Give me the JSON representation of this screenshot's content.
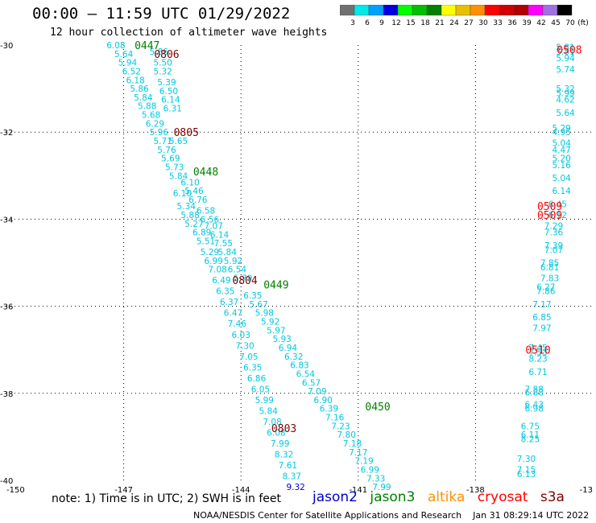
{
  "header": {
    "title": "00:00 – 11:59 UTC 01/29/2022",
    "subtitle": "12 hour collection of altimeter wave heights"
  },
  "colorbar": {
    "labels": [
      "3",
      "6",
      "9",
      "12",
      "15",
      "18",
      "21",
      "24",
      "27",
      "30",
      "33",
      "36",
      "39",
      "42",
      "45",
      "70"
    ],
    "unit": "(ft)",
    "colors": [
      "#707070",
      "#00e8e8",
      "#00a0ff",
      "#0000e0",
      "#00ff00",
      "#00c000",
      "#008000",
      "#ffff00",
      "#e8c000",
      "#ff9000",
      "#ff0000",
      "#d00000",
      "#b00000",
      "#ff00ff",
      "#a070e0",
      "#000000"
    ]
  },
  "note": "note: 1) Time is in UTC; 2) SWH is in feet",
  "satellites": [
    {
      "name": "jason2",
      "color": "#0000cc"
    },
    {
      "name": "jason3",
      "color": "#008000"
    },
    {
      "name": "altika",
      "color": "#ff9000"
    },
    {
      "name": "cryosat",
      "color": "#ff0000"
    },
    {
      "name": "s3a",
      "color": "#800000"
    }
  ],
  "credit": "NOAA/NESDIS Center for Satellite Applications and Research    Jan 31 08:29:14 UTC 2022",
  "chart_data": {
    "type": "scatter",
    "title": "00:00 – 11:59 UTC 01/29/2022",
    "subtitle": "12 hour collection of altimeter wave heights",
    "x_ticks": [
      "-150",
      "-147",
      "-144",
      "-141",
      "-138",
      "-13"
    ],
    "y_ticks": [
      "-30",
      "-32",
      "-34",
      "-36",
      "-38",
      "-40"
    ],
    "xlim": [
      -150,
      -135
    ],
    "ylim": [
      -40,
      -30
    ],
    "grid": "dotted",
    "time_labels": [
      {
        "text": "0447",
        "lon": -146.4,
        "lat": -30.0,
        "color": "#008000"
      },
      {
        "text": "0806",
        "lon": -145.9,
        "lat": -30.2,
        "color": "#800000"
      },
      {
        "text": "0805",
        "lon": -145.4,
        "lat": -32.0,
        "color": "#800000"
      },
      {
        "text": "0448",
        "lon": -144.9,
        "lat": -32.9,
        "color": "#008000"
      },
      {
        "text": "0804",
        "lon": -143.9,
        "lat": -35.4,
        "color": "#800000"
      },
      {
        "text": "0449",
        "lon": -143.1,
        "lat": -35.5,
        "color": "#008000"
      },
      {
        "text": "0450",
        "lon": -140.5,
        "lat": -38.3,
        "color": "#008000"
      },
      {
        "text": "0803",
        "lon": -142.9,
        "lat": -38.8,
        "color": "#800000"
      },
      {
        "text": "0508",
        "lon": -135.6,
        "lat": -30.1,
        "color": "#ff0000"
      },
      {
        "text": "0509",
        "lon": -136.1,
        "lat": -33.7,
        "color": "#ff0000"
      },
      {
        "text": "0509",
        "lon": -136.1,
        "lat": -33.9,
        "color": "#ff0000"
      },
      {
        "text": "0510",
        "lon": -136.4,
        "lat": -37.0,
        "color": "#ff0000"
      }
    ],
    "series": [
      {
        "name": "jason3",
        "color": "#00c8e0",
        "points": [
          {
            "lon": -147.2,
            "lat": -30.0,
            "v": "6.08"
          },
          {
            "lon": -146.1,
            "lat": -30.15,
            "v": "5.86"
          },
          {
            "lon": -146.0,
            "lat": -30.4,
            "v": "5.50"
          },
          {
            "lon": -146.0,
            "lat": -30.6,
            "v": "5.32"
          },
          {
            "lon": -145.9,
            "lat": -30.85,
            "v": "5.39"
          },
          {
            "lon": -145.85,
            "lat": -31.05,
            "v": "6.50"
          },
          {
            "lon": -145.8,
            "lat": -31.25,
            "v": "6.14"
          },
          {
            "lon": -145.75,
            "lat": -31.45,
            "v": "6.31"
          },
          {
            "lon": -145.6,
            "lat": -32.2,
            "v": "5.65"
          },
          {
            "lon": -145.3,
            "lat": -33.15,
            "v": "6.10"
          },
          {
            "lon": -145.2,
            "lat": -33.35,
            "v": "5.46"
          },
          {
            "lon": -145.1,
            "lat": -33.55,
            "v": "6.76"
          },
          {
            "lon": -144.9,
            "lat": -33.8,
            "v": "6.58"
          },
          {
            "lon": -144.8,
            "lat": -34.0,
            "v": "6.56"
          },
          {
            "lon": -144.7,
            "lat": -34.15,
            "v": "7.07"
          },
          {
            "lon": -144.55,
            "lat": -34.35,
            "v": "6.14"
          },
          {
            "lon": -144.45,
            "lat": -34.55,
            "v": "7.55"
          },
          {
            "lon": -144.35,
            "lat": -34.75,
            "v": "5.84"
          },
          {
            "lon": -144.2,
            "lat": -34.95,
            "v": "5.92"
          },
          {
            "lon": -144.1,
            "lat": -35.15,
            "v": "6.54"
          },
          {
            "lon": -143.95,
            "lat": -35.35,
            "v": "5.79"
          },
          {
            "lon": -143.7,
            "lat": -35.75,
            "v": "6.35"
          },
          {
            "lon": -143.55,
            "lat": -35.95,
            "v": "5.67"
          },
          {
            "lon": -143.4,
            "lat": -36.15,
            "v": "5.98"
          },
          {
            "lon": -143.25,
            "lat": -36.35,
            "v": "5.92"
          },
          {
            "lon": -143.1,
            "lat": -36.55,
            "v": "5.97"
          },
          {
            "lon": -142.95,
            "lat": -36.75,
            "v": "5.93"
          },
          {
            "lon": -142.8,
            "lat": -36.95,
            "v": "6.94"
          },
          {
            "lon": -142.65,
            "lat": -37.15,
            "v": "6.32"
          },
          {
            "lon": -142.5,
            "lat": -37.35,
            "v": "6.83"
          },
          {
            "lon": -142.35,
            "lat": -37.55,
            "v": "6.54"
          },
          {
            "lon": -142.2,
            "lat": -37.75,
            "v": "6.57"
          },
          {
            "lon": -142.05,
            "lat": -37.95,
            "v": "7.09"
          },
          {
            "lon": -141.9,
            "lat": -38.15,
            "v": "6.90"
          },
          {
            "lon": -141.75,
            "lat": -38.35,
            "v": "6.39"
          },
          {
            "lon": -141.6,
            "lat": -38.55,
            "v": "7.16"
          },
          {
            "lon": -141.45,
            "lat": -38.75,
            "v": "7.23"
          },
          {
            "lon": -141.3,
            "lat": -38.95,
            "v": "7.80"
          },
          {
            "lon": -141.15,
            "lat": -39.15,
            "v": "7.18"
          },
          {
            "lon": -141.0,
            "lat": -39.35,
            "v": "7.17"
          },
          {
            "lon": -140.85,
            "lat": -39.55,
            "v": "7.19"
          },
          {
            "lon": -140.7,
            "lat": -39.75,
            "v": "6.99"
          },
          {
            "lon": -140.55,
            "lat": -39.95,
            "v": "7.33"
          },
          {
            "lon": -140.4,
            "lat": -40.15,
            "v": "7.99"
          }
        ]
      },
      {
        "name": "s3a",
        "color": "#00c8e0",
        "points": [
          {
            "lon": -147.0,
            "lat": -30.2,
            "v": "5.64"
          },
          {
            "lon": -146.9,
            "lat": -30.4,
            "v": "5.94"
          },
          {
            "lon": -146.8,
            "lat": -30.6,
            "v": "6.52"
          },
          {
            "lon": -146.7,
            "lat": -30.8,
            "v": "6.18"
          },
          {
            "lon": -146.6,
            "lat": -31.0,
            "v": "5.86"
          },
          {
            "lon": -146.5,
            "lat": -31.2,
            "v": "5.84"
          },
          {
            "lon": -146.4,
            "lat": -31.4,
            "v": "5.88"
          },
          {
            "lon": -146.3,
            "lat": -31.6,
            "v": "5.68"
          },
          {
            "lon": -146.2,
            "lat": -31.8,
            "v": "6.29"
          },
          {
            "lon": -146.1,
            "lat": -32.0,
            "v": "5.96"
          },
          {
            "lon": -146.0,
            "lat": -32.2,
            "v": "5.71"
          },
          {
            "lon": -145.9,
            "lat": -32.4,
            "v": "5.76"
          },
          {
            "lon": -145.8,
            "lat": -32.6,
            "v": "5.69"
          },
          {
            "lon": -145.7,
            "lat": -32.8,
            "v": "5.73"
          },
          {
            "lon": -145.6,
            "lat": -33.0,
            "v": "5.84"
          },
          {
            "lon": -145.5,
            "lat": -33.4,
            "v": "6.10"
          },
          {
            "lon": -145.4,
            "lat": -33.7,
            "v": "5.34"
          },
          {
            "lon": -145.3,
            "lat": -33.9,
            "v": "5.88"
          },
          {
            "lon": -145.2,
            "lat": -34.1,
            "v": "5.27"
          },
          {
            "lon": -145.0,
            "lat": -34.3,
            "v": "6.89"
          },
          {
            "lon": -144.9,
            "lat": -34.5,
            "v": "5.51"
          },
          {
            "lon": -144.8,
            "lat": -34.75,
            "v": "5.29"
          },
          {
            "lon": -144.7,
            "lat": -34.95,
            "v": "6.99"
          },
          {
            "lon": -144.6,
            "lat": -35.15,
            "v": "7.08"
          },
          {
            "lon": -144.5,
            "lat": -35.4,
            "v": "6.49"
          },
          {
            "lon": -144.4,
            "lat": -35.65,
            "v": "6.35"
          },
          {
            "lon": -144.3,
            "lat": -35.9,
            "v": "6.37"
          },
          {
            "lon": -144.2,
            "lat": -36.15,
            "v": "6.47"
          },
          {
            "lon": -144.1,
            "lat": -36.4,
            "v": "7.46"
          },
          {
            "lon": -144.0,
            "lat": -36.65,
            "v": "6.03"
          },
          {
            "lon": -143.9,
            "lat": -36.9,
            "v": "7.30"
          },
          {
            "lon": -143.8,
            "lat": -37.15,
            "v": "7.05"
          },
          {
            "lon": -143.7,
            "lat": -37.4,
            "v": "6.35"
          },
          {
            "lon": -143.6,
            "lat": -37.65,
            "v": "6.86"
          },
          {
            "lon": -143.5,
            "lat": -37.9,
            "v": "6.05"
          },
          {
            "lon": -143.4,
            "lat": -38.15,
            "v": "5.99"
          },
          {
            "lon": -143.3,
            "lat": -38.4,
            "v": "5.84"
          },
          {
            "lon": -143.2,
            "lat": -38.65,
            "v": "7.08"
          },
          {
            "lon": -143.1,
            "lat": -38.9,
            "v": "6.08"
          },
          {
            "lon": -143.0,
            "lat": -39.15,
            "v": "7.99"
          },
          {
            "lon": -142.9,
            "lat": -39.4,
            "v": "8.32"
          },
          {
            "lon": -142.8,
            "lat": -39.65,
            "v": "7.61"
          },
          {
            "lon": -142.7,
            "lat": -39.9,
            "v": "8.37"
          },
          {
            "lon": -142.6,
            "lat": -40.15,
            "v": "9.32",
            "color": "#0000cc"
          }
        ]
      },
      {
        "name": "cryosat",
        "color": "#00c8e0",
        "points": [
          {
            "lon": -135.7,
            "lat": -30.05,
            "v": "5.81"
          },
          {
            "lon": -135.7,
            "lat": -30.15,
            "v": "5.81"
          },
          {
            "lon": -135.7,
            "lat": -30.3,
            "v": "5.94"
          },
          {
            "lon": -135.7,
            "lat": -30.55,
            "v": "5.74"
          },
          {
            "lon": -135.7,
            "lat": -31.0,
            "v": "5.32"
          },
          {
            "lon": -135.7,
            "lat": -31.1,
            "v": "5.99"
          },
          {
            "lon": -135.7,
            "lat": -31.25,
            "v": "4.62"
          },
          {
            "lon": -135.7,
            "lat": -31.55,
            "v": "5.64"
          },
          {
            "lon": -135.8,
            "lat": -31.9,
            "v": "5.29"
          },
          {
            "lon": -135.8,
            "lat": -32.0,
            "v": "4.95"
          },
          {
            "lon": -135.8,
            "lat": -32.25,
            "v": "5.04"
          },
          {
            "lon": -135.8,
            "lat": -32.4,
            "v": "4.47"
          },
          {
            "lon": -135.8,
            "lat": -32.6,
            "v": "5.20"
          },
          {
            "lon": -135.8,
            "lat": -32.75,
            "v": "5.16"
          },
          {
            "lon": -135.8,
            "lat": -33.05,
            "v": "5.04"
          },
          {
            "lon": -135.8,
            "lat": -33.35,
            "v": "6.14"
          },
          {
            "lon": -135.9,
            "lat": -33.65,
            "v": "6.45"
          },
          {
            "lon": -135.9,
            "lat": -33.9,
            "v": "6.12"
          },
          {
            "lon": -136.0,
            "lat": -34.15,
            "v": "7.29"
          },
          {
            "lon": -136.0,
            "lat": -34.3,
            "v": "7.36"
          },
          {
            "lon": -136.0,
            "lat": -34.6,
            "v": "7.39"
          },
          {
            "lon": -136.0,
            "lat": -34.7,
            "v": "7.07"
          },
          {
            "lon": -136.1,
            "lat": -35.0,
            "v": "7.85"
          },
          {
            "lon": -136.1,
            "lat": -35.1,
            "v": "6.81"
          },
          {
            "lon": -136.1,
            "lat": -35.35,
            "v": "7.83"
          },
          {
            "lon": -136.2,
            "lat": -35.55,
            "v": "6.27"
          },
          {
            "lon": -136.2,
            "lat": -35.65,
            "v": "7.86"
          },
          {
            "lon": -136.3,
            "lat": -35.95,
            "v": "7.17"
          },
          {
            "lon": -136.3,
            "lat": -36.25,
            "v": "6.85"
          },
          {
            "lon": -136.3,
            "lat": -36.5,
            "v": "7.97"
          },
          {
            "lon": -136.4,
            "lat": -36.95,
            "v": "7.45"
          },
          {
            "lon": -136.4,
            "lat": -37.05,
            "v": "7.53"
          },
          {
            "lon": -136.4,
            "lat": -37.2,
            "v": "8.23"
          },
          {
            "lon": -136.4,
            "lat": -37.5,
            "v": "6.71"
          },
          {
            "lon": -136.5,
            "lat": -37.9,
            "v": "7.88"
          },
          {
            "lon": -136.5,
            "lat": -37.98,
            "v": "6.88"
          },
          {
            "lon": -136.5,
            "lat": -38.25,
            "v": "6.43"
          },
          {
            "lon": -136.5,
            "lat": -38.35,
            "v": "6.98"
          },
          {
            "lon": -136.6,
            "lat": -38.75,
            "v": "6.75"
          },
          {
            "lon": -136.6,
            "lat": -38.95,
            "v": "6.11"
          },
          {
            "lon": -136.6,
            "lat": -39.05,
            "v": "8.25"
          },
          {
            "lon": -136.7,
            "lat": -39.5,
            "v": "7.30"
          },
          {
            "lon": -136.7,
            "lat": -39.75,
            "v": "7.15"
          },
          {
            "lon": -136.7,
            "lat": -39.85,
            "v": "6.13"
          }
        ]
      }
    ]
  }
}
